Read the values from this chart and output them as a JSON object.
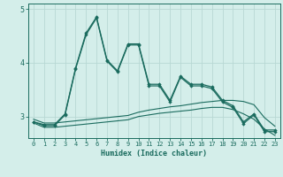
{
  "x": [
    0,
    1,
    2,
    3,
    4,
    5,
    6,
    7,
    8,
    9,
    10,
    11,
    12,
    13,
    14,
    15,
    16,
    17,
    18,
    19,
    20,
    21,
    22,
    23
  ],
  "line1": [
    2.9,
    2.85,
    2.85,
    3.05,
    3.9,
    4.55,
    4.85,
    4.05,
    3.85,
    4.35,
    4.35,
    3.6,
    3.6,
    3.3,
    3.75,
    3.6,
    3.6,
    3.55,
    3.3,
    3.2,
    2.9,
    3.05,
    2.75,
    2.75
  ],
  "line2": [
    2.9,
    2.83,
    2.83,
    3.03,
    3.88,
    4.52,
    4.83,
    4.03,
    3.83,
    4.33,
    4.33,
    3.57,
    3.57,
    3.27,
    3.73,
    3.57,
    3.57,
    3.52,
    3.27,
    3.17,
    2.87,
    3.03,
    2.72,
    2.72
  ],
  "line3_flat": [
    2.95,
    2.88,
    2.88,
    2.9,
    2.92,
    2.94,
    2.96,
    2.98,
    3.0,
    3.02,
    3.08,
    3.12,
    3.15,
    3.18,
    3.2,
    3.23,
    3.26,
    3.28,
    3.3,
    3.3,
    3.28,
    3.22,
    2.98,
    2.82
  ],
  "line4_flat": [
    2.88,
    2.8,
    2.8,
    2.82,
    2.84,
    2.86,
    2.88,
    2.9,
    2.92,
    2.94,
    3.0,
    3.03,
    3.06,
    3.08,
    3.1,
    3.12,
    3.15,
    3.17,
    3.17,
    3.13,
    3.05,
    2.95,
    2.77,
    2.65
  ],
  "color": "#1a6b5e",
  "bg_color": "#d4eeea",
  "grid_color": "#b8d8d4",
  "xlabel": "Humidex (Indice chaleur)",
  "ylim": [
    2.6,
    5.1
  ],
  "xlim": [
    -0.5,
    23.5
  ],
  "yticks": [
    3,
    4,
    5
  ],
  "xticks": [
    0,
    1,
    2,
    3,
    4,
    5,
    6,
    7,
    8,
    9,
    10,
    11,
    12,
    13,
    14,
    15,
    16,
    17,
    18,
    19,
    20,
    21,
    22,
    23
  ]
}
